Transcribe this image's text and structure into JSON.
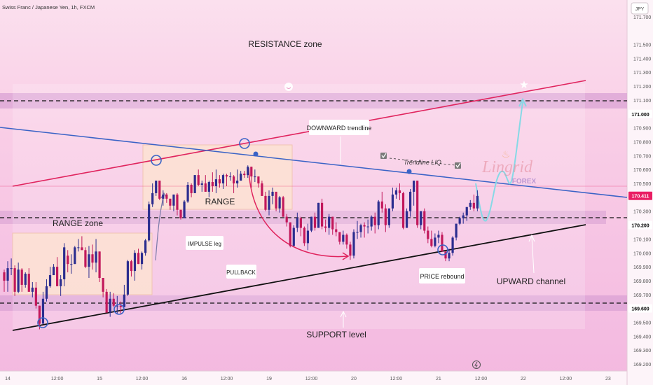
{
  "header": {
    "symbol_title": "Swiss Franc / Japanese Yen, 1h, FXCM",
    "currency_badge": "JPY"
  },
  "watermark": {
    "brand": "Lingrid",
    "sub": "FOREX"
  },
  "chart_data": {
    "type": "candlestick",
    "title": "Swiss Franc / Japanese Yen, 1h, FXCM",
    "ylim": [
      169.15,
      171.82
    ],
    "y_ticks": [
      "171.700",
      "171.500",
      "171.400",
      "171.300",
      "171.200",
      "171.100",
      "170.900",
      "170.800",
      "170.700",
      "170.600",
      "170.500",
      "170.300",
      "170.100",
      "170.000",
      "169.900",
      "169.800",
      "169.700",
      "169.500",
      "169.400",
      "169.300",
      "169.200"
    ],
    "y_tick_values": [
      171.7,
      171.5,
      171.4,
      171.3,
      171.2,
      171.1,
      170.9,
      170.8,
      170.7,
      170.6,
      170.5,
      170.3,
      170.1,
      170.0,
      169.9,
      169.8,
      169.7,
      169.5,
      169.4,
      169.3,
      169.2
    ],
    "x_ticks": [
      "14",
      "12:00",
      "15",
      "12:00",
      "16",
      "12:00",
      "19",
      "12:00",
      "20",
      "12:00",
      "21",
      "12:00",
      "22",
      "12:00",
      "23"
    ],
    "x_tick_index": [
      1,
      15,
      27,
      39,
      51,
      63,
      75,
      87,
      99,
      111,
      123,
      135,
      147,
      159,
      171
    ],
    "price_labels": [
      {
        "text": "171.000",
        "value": 171.0,
        "color": "#ffffff",
        "text_color": "#000000"
      },
      {
        "text": "170.411",
        "value": 170.411,
        "color": "#e91e63",
        "text_color": "#ffffff"
      },
      {
        "text": "170.200",
        "value": 170.2,
        "color": "#ffffff",
        "text_color": "#000000"
      },
      {
        "text": "169.600",
        "value": 169.6,
        "color": "#ffffff",
        "text_color": "#000000"
      }
    ],
    "annotations": [
      "RESISTANCE zone",
      "RANGE zone",
      "RANGE",
      "SUPPORT level",
      "UPWARD channel",
      "DOWNWARD trendline",
      "Trendline LIQ",
      "IMPULSE leg",
      "PULLBACK",
      "PRICE rebound"
    ],
    "levels": {
      "resistance": 171.0,
      "mid": 170.2,
      "support": 169.6
    },
    "candles": [
      [
        169.86,
        169.88,
        169.72,
        169.8
      ],
      [
        169.8,
        169.94,
        169.72,
        169.89
      ],
      [
        169.89,
        169.96,
        169.84,
        169.89
      ],
      [
        169.89,
        169.91,
        169.69,
        169.72
      ],
      [
        169.72,
        169.93,
        169.71,
        169.88
      ],
      [
        169.88,
        169.89,
        169.72,
        169.77
      ],
      [
        169.77,
        169.86,
        169.75,
        169.85
      ],
      [
        169.85,
        169.89,
        169.72,
        169.72
      ],
      [
        169.72,
        169.79,
        169.68,
        169.75
      ],
      [
        169.75,
        169.79,
        169.6,
        169.62
      ],
      [
        169.62,
        169.62,
        169.45,
        169.49
      ],
      [
        169.49,
        169.72,
        169.49,
        169.67
      ],
      [
        169.67,
        169.81,
        169.65,
        169.76
      ],
      [
        169.76,
        169.9,
        169.75,
        169.84
      ],
      [
        169.84,
        169.92,
        169.84,
        169.9
      ],
      [
        169.9,
        169.97,
        169.76,
        169.76
      ],
      [
        169.76,
        169.84,
        169.69,
        169.81
      ],
      [
        169.81,
        170.07,
        169.76,
        170.04
      ],
      [
        169.98,
        170.02,
        169.86,
        169.92
      ],
      [
        169.92,
        169.99,
        169.85,
        169.92
      ],
      [
        169.92,
        170.05,
        169.92,
        170.04
      ],
      [
        170.04,
        170.1,
        170.01,
        170.04
      ],
      [
        170.04,
        170.12,
        170.02,
        170.02
      ],
      [
        170.02,
        170.04,
        169.89,
        169.9
      ],
      [
        169.9,
        170.05,
        169.82,
        169.99
      ],
      [
        169.99,
        170.06,
        169.88,
        169.93
      ],
      [
        169.93,
        170.1,
        169.86,
        170.01
      ],
      [
        170.01,
        170.01,
        169.79,
        169.82
      ],
      [
        169.82,
        169.82,
        169.68,
        169.72
      ],
      [
        169.72,
        169.74,
        169.57,
        169.57
      ],
      [
        169.57,
        169.72,
        169.54,
        169.67
      ],
      [
        169.67,
        169.71,
        169.61,
        169.62
      ],
      [
        169.62,
        169.69,
        169.56,
        169.62
      ],
      [
        169.62,
        169.65,
        169.56,
        169.61
      ],
      [
        169.61,
        169.77,
        169.61,
        169.7
      ],
      [
        169.7,
        169.95,
        169.69,
        169.94
      ],
      [
        169.94,
        169.95,
        169.83,
        169.87
      ],
      [
        169.87,
        170.02,
        169.8,
        170.0
      ],
      [
        170.0,
        170.03,
        169.92,
        169.92
      ],
      [
        169.92,
        170.01,
        169.88,
        170.0
      ],
      [
        170.0,
        170.1,
        169.98,
        170.09
      ],
      [
        170.09,
        170.37,
        170.08,
        170.35
      ],
      [
        170.35,
        170.5,
        170.33,
        170.43
      ],
      [
        170.43,
        170.52,
        170.41,
        170.52
      ],
      [
        170.52,
        170.52,
        170.38,
        170.39
      ],
      [
        170.39,
        170.45,
        170.34,
        170.42
      ],
      [
        170.42,
        170.43,
        170.36,
        170.39
      ],
      [
        170.39,
        170.39,
        170.31,
        170.34
      ],
      [
        170.34,
        170.42,
        170.3,
        170.42
      ],
      [
        170.42,
        170.43,
        170.27,
        170.31
      ],
      [
        170.31,
        170.31,
        170.24,
        170.25
      ],
      [
        170.25,
        170.38,
        170.25,
        170.37
      ],
      [
        170.37,
        170.51,
        170.36,
        170.49
      ],
      [
        170.49,
        170.5,
        170.4,
        170.43
      ],
      [
        170.43,
        170.56,
        170.43,
        170.56
      ],
      [
        170.56,
        170.6,
        170.48,
        170.49
      ],
      [
        170.49,
        170.52,
        170.44,
        170.5
      ],
      [
        170.5,
        170.56,
        170.44,
        170.44
      ],
      [
        170.44,
        170.52,
        170.4,
        170.51
      ],
      [
        170.51,
        170.58,
        170.44,
        170.48
      ],
      [
        170.48,
        170.6,
        170.43,
        170.53
      ],
      [
        170.53,
        170.56,
        170.47,
        170.5
      ],
      [
        170.5,
        170.57,
        170.46,
        170.56
      ],
      [
        170.56,
        170.57,
        170.48,
        170.55
      ],
      [
        170.55,
        170.58,
        170.52,
        170.55
      ],
      [
        170.55,
        170.56,
        170.43,
        170.5
      ],
      [
        170.5,
        170.6,
        170.47,
        170.52
      ],
      [
        170.52,
        170.59,
        170.52,
        170.57
      ],
      [
        170.57,
        170.59,
        170.54,
        170.56
      ],
      [
        170.56,
        170.63,
        170.54,
        170.62
      ],
      [
        170.62,
        170.62,
        170.47,
        170.55
      ],
      [
        170.55,
        170.6,
        170.51,
        170.55
      ],
      [
        170.55,
        170.55,
        170.47,
        170.5
      ],
      [
        170.5,
        170.52,
        170.41,
        170.41
      ],
      [
        170.41,
        170.44,
        170.3,
        170.31
      ],
      [
        170.31,
        170.45,
        170.27,
        170.41
      ],
      [
        170.41,
        170.47,
        170.35,
        170.44
      ],
      [
        170.44,
        170.44,
        170.3,
        170.32
      ],
      [
        170.32,
        170.41,
        170.29,
        170.4
      ],
      [
        170.4,
        170.41,
        170.26,
        170.26
      ],
      [
        170.26,
        170.28,
        170.19,
        170.22
      ],
      [
        170.22,
        170.22,
        170.04,
        170.05
      ],
      [
        170.05,
        170.2,
        170.05,
        170.18
      ],
      [
        170.18,
        170.29,
        170.15,
        170.25
      ],
      [
        170.25,
        170.26,
        170.12,
        170.18
      ],
      [
        170.18,
        170.19,
        170.05,
        170.07
      ],
      [
        170.07,
        170.21,
        170.02,
        170.16
      ],
      [
        170.16,
        170.26,
        170.15,
        170.26
      ],
      [
        170.26,
        170.29,
        170.16,
        170.18
      ],
      [
        170.18,
        170.36,
        170.18,
        170.36
      ],
      [
        170.36,
        170.39,
        170.17,
        170.19
      ],
      [
        170.19,
        170.24,
        170.15,
        170.18
      ],
      [
        170.18,
        170.28,
        170.13,
        170.26
      ],
      [
        170.26,
        170.26,
        170.13,
        170.17
      ],
      [
        170.17,
        170.22,
        170.12,
        170.15
      ],
      [
        170.15,
        170.15,
        170.06,
        170.08
      ],
      [
        170.08,
        170.16,
        170.06,
        170.13
      ],
      [
        170.13,
        170.14,
        170.03,
        170.06
      ],
      [
        170.06,
        170.08,
        169.95,
        169.98
      ],
      [
        169.98,
        170.17,
        169.96,
        170.15
      ],
      [
        170.15,
        170.23,
        170.1,
        170.15
      ],
      [
        170.15,
        170.21,
        170.11,
        170.2
      ],
      [
        170.2,
        170.22,
        170.11,
        170.19
      ],
      [
        170.19,
        170.24,
        170.14,
        170.19
      ],
      [
        170.19,
        170.27,
        170.16,
        170.26
      ],
      [
        170.26,
        170.29,
        170.14,
        170.2
      ],
      [
        170.2,
        170.38,
        170.17,
        170.37
      ],
      [
        170.37,
        170.44,
        170.29,
        170.32
      ],
      [
        170.32,
        170.35,
        170.15,
        170.2
      ],
      [
        170.2,
        170.32,
        170.18,
        170.32
      ],
      [
        170.32,
        170.47,
        170.3,
        170.42
      ],
      [
        170.42,
        170.47,
        170.39,
        170.45
      ],
      [
        170.45,
        170.5,
        170.38,
        170.43
      ],
      [
        170.43,
        170.44,
        170.17,
        170.18
      ],
      [
        170.18,
        170.32,
        170.18,
        170.3
      ],
      [
        170.3,
        170.46,
        170.26,
        170.44
      ],
      [
        170.44,
        170.52,
        170.34,
        170.52
      ],
      [
        170.52,
        170.52,
        170.18,
        170.2
      ],
      [
        170.2,
        170.3,
        170.17,
        170.3
      ],
      [
        170.3,
        170.32,
        170.14,
        170.16
      ],
      [
        170.16,
        170.19,
        170.07,
        170.1
      ],
      [
        170.1,
        170.16,
        170.04,
        170.05
      ],
      [
        170.05,
        170.14,
        170.04,
        170.11
      ],
      [
        170.11,
        170.16,
        170.07,
        170.13
      ],
      [
        170.13,
        170.15,
        170.01,
        170.01
      ],
      [
        170.01,
        170.01,
        169.94,
        169.96
      ],
      [
        169.96,
        170.03,
        169.94,
        170.0
      ],
      [
        170.0,
        170.12,
        169.98,
        170.11
      ],
      [
        170.11,
        170.21,
        170.09,
        170.21
      ],
      [
        170.21,
        170.26,
        170.2,
        170.25
      ],
      [
        170.25,
        170.29,
        170.21,
        170.27
      ],
      [
        170.27,
        170.33,
        170.23,
        170.33
      ],
      [
        170.33,
        170.38,
        170.31,
        170.36
      ],
      [
        170.36,
        170.42,
        170.3,
        170.32
      ],
      [
        170.32,
        170.45,
        170.3,
        170.41
      ]
    ]
  }
}
